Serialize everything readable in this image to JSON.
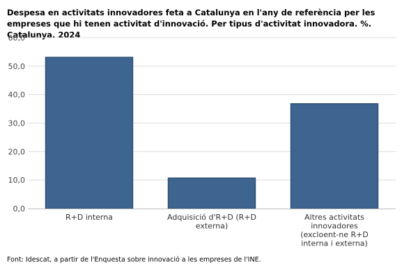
{
  "chart_data": {
    "type": "bar",
    "title": "Despesa en activitats innovadores feta a Catalunya en l'any de referència per les empreses que hi tenen activitat d'innovació. Per tipus d'activitat innovadora. %. Catalunya. 2024",
    "categories": [
      [
        "R+D interna"
      ],
      [
        "Adquisició d'R+D (R+D",
        "externa)"
      ],
      [
        "Altres activitats",
        "innovadores",
        "(excloent-ne R+D",
        "interna i externa)"
      ]
    ],
    "values": [
      53.1,
      10.7,
      36.8
    ],
    "ylim": [
      0,
      60
    ],
    "yticks": [
      "0,0",
      "10,0",
      "20,0",
      "30,0",
      "40,0",
      "50,0",
      "60,0"
    ],
    "grid": true,
    "bar_color": "#3e6590",
    "bar_edge_color": "#2e4f74"
  },
  "footnote": "Font: Idescat, a partir de l'Enquesta sobre innovació a les empreses de l'INE."
}
